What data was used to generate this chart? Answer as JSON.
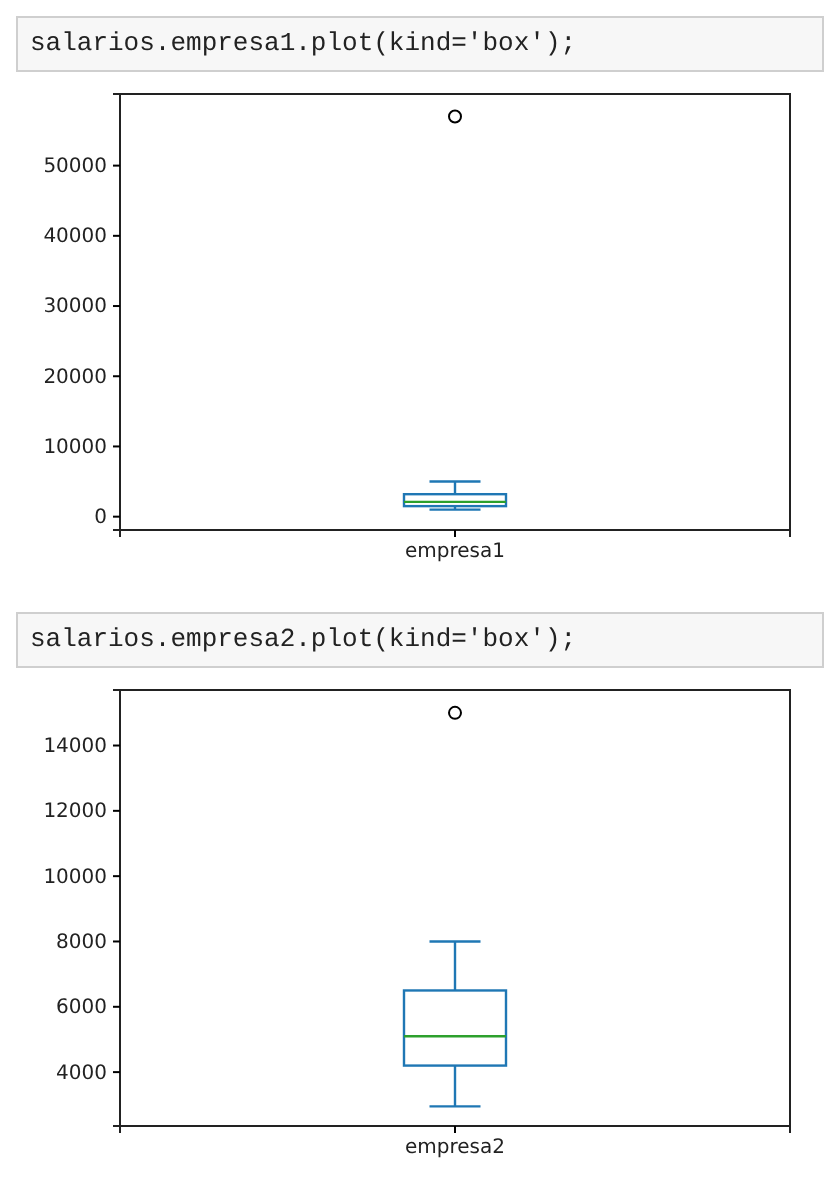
{
  "chart_data": [
    {
      "type": "box",
      "annotations": [
        "salarios.empresa1.plot(kind='box');"
      ],
      "categories": [
        "empresa1"
      ],
      "series": [
        {
          "color": "#1f77b4",
          "boxes": [
            {
              "low": 1000,
              "q1": 1500,
              "median": 2100,
              "q3": 3200,
              "high": 5000,
              "outliers": [
                57000
              ]
            }
          ]
        }
      ],
      "ylim": [
        -1900,
        60200
      ],
      "yticks": [
        0,
        10000,
        20000,
        30000,
        40000,
        50000
      ]
    },
    {
      "type": "box",
      "annotations": [
        "salarios.empresa2.plot(kind='box');"
      ],
      "categories": [
        "empresa2"
      ],
      "series": [
        {
          "color": "#1f77b4",
          "boxes": [
            {
              "low": 2950,
              "q1": 4200,
              "median": 5100,
              "q3": 6500,
              "high": 8000,
              "outliers": [
                15000
              ]
            }
          ]
        }
      ],
      "ylim": [
        2350,
        15700
      ],
      "yticks": [
        4000,
        6000,
        8000,
        10000,
        12000,
        14000
      ]
    }
  ]
}
